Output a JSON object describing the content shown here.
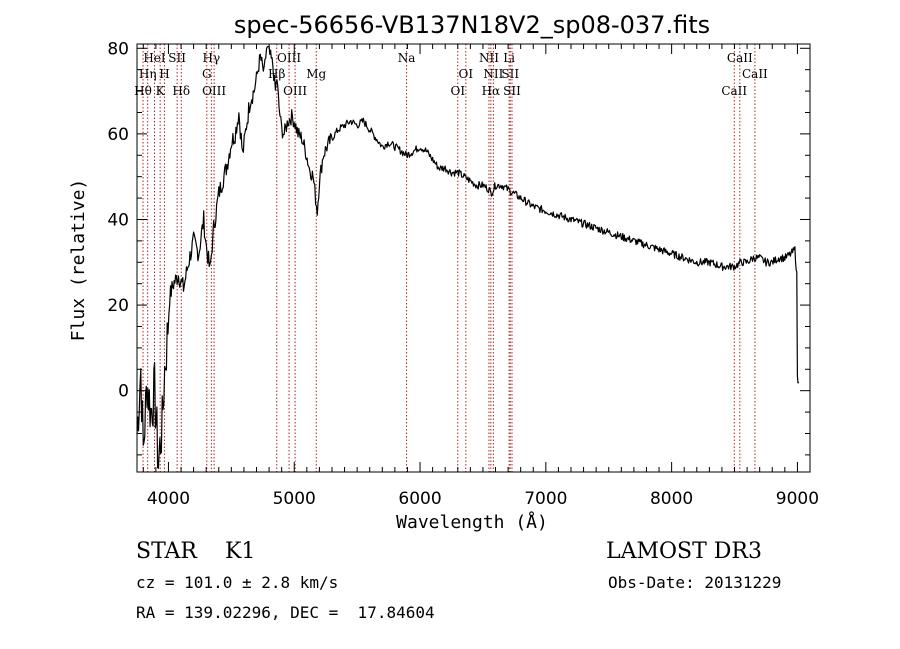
{
  "chart_data": {
    "type": "line",
    "title": "spec-56656-VB137N18V2_sp08-037.fits",
    "xlabel": "Wavelength (Å)",
    "ylabel": "Flux (relative)",
    "xlim": [
      3750,
      9100
    ],
    "ylim": [
      -19,
      81
    ],
    "xticks": [
      4000,
      5000,
      6000,
      7000,
      8000,
      9000
    ],
    "xtick_labels": [
      "4000",
      "5000",
      "6000",
      "7000",
      "8000",
      "9000"
    ],
    "yticks": [
      0,
      20,
      40,
      60,
      80
    ],
    "ytick_labels": [
      "0",
      "20",
      "40",
      "60",
      "80"
    ],
    "series": [
      {
        "name": "flux",
        "x": [
          3750,
          3780,
          3800,
          3830,
          3860,
          3890,
          3920,
          3950,
          3970,
          3990,
          4010,
          4040,
          4080,
          4120,
          4160,
          4200,
          4240,
          4280,
          4300,
          4330,
          4360,
          4400,
          4430,
          4460,
          4500,
          4530,
          4560,
          4590,
          4620,
          4650,
          4680,
          4700,
          4730,
          4760,
          4780,
          4800,
          4830,
          4850,
          4862,
          4880,
          4900,
          4920,
          4950,
          4980,
          5000,
          5030,
          5060,
          5090,
          5120,
          5150,
          5170,
          5183,
          5200,
          5230,
          5260,
          5300,
          5350,
          5400,
          5450,
          5500,
          5550,
          5600,
          5650,
          5700,
          5750,
          5800,
          5850,
          5893,
          5950,
          6000,
          6050,
          6100,
          6150,
          6200,
          6250,
          6300,
          6350,
          6400,
          6450,
          6500,
          6550,
          6563,
          6600,
          6650,
          6700,
          6750,
          6800,
          6900,
          7000,
          7100,
          7200,
          7300,
          7400,
          7500,
          7600,
          7700,
          7800,
          7900,
          8000,
          8100,
          8200,
          8300,
          8400,
          8500,
          8550,
          8600,
          8650,
          8700,
          8750,
          8800,
          8850,
          8900,
          8950,
          8980,
          8995,
          9000,
          9010
        ],
        "y": [
          -10,
          5,
          -14,
          2,
          -5,
          0,
          -17,
          -8,
          5,
          12,
          22,
          25,
          27,
          24,
          30,
          35,
          32,
          40,
          34,
          28,
          38,
          46,
          49,
          52,
          58,
          60,
          65,
          55,
          62,
          68,
          70,
          73,
          78,
          74,
          80,
          79,
          76,
          70,
          73,
          66,
          61,
          60,
          63,
          64,
          63,
          60,
          59,
          56,
          52,
          50,
          45,
          42,
          49,
          55,
          57,
          59,
          61,
          62,
          63,
          62,
          63,
          61,
          59,
          57,
          58,
          57,
          56,
          55,
          56,
          57,
          56,
          54,
          52,
          52,
          51,
          51,
          50,
          49,
          48,
          48,
          47,
          46,
          48,
          48,
          47,
          46,
          45,
          43,
          42,
          41,
          40,
          39,
          38,
          37,
          36,
          35,
          34,
          33,
          32,
          31,
          30,
          30,
          29,
          29,
          30,
          30,
          31,
          31,
          30,
          30,
          31,
          31,
          32,
          33,
          27,
          3,
          2
        ]
      }
    ],
    "spectral_lines": [
      {
        "label": "Hθ",
        "wl": 3798,
        "row": 3
      },
      {
        "label": "Hη",
        "wl": 3835,
        "row": 2
      },
      {
        "label": "HeI",
        "wl": 3889,
        "row": 1
      },
      {
        "label": "K",
        "wl": 3934,
        "row": 3
      },
      {
        "label": "H",
        "wl": 3968,
        "row": 2
      },
      {
        "label": "SII",
        "wl": 4069,
        "row": 1
      },
      {
        "label": "Hδ",
        "wl": 4102,
        "row": 3
      },
      {
        "label": "Hγ",
        "wl": 4341,
        "row": 1
      },
      {
        "label": "G",
        "wl": 4305,
        "row": 2
      },
      {
        "label": "OIII",
        "wl": 4363,
        "row": 3
      },
      {
        "label": "OIII",
        "wl": 4959,
        "row": 1
      },
      {
        "label": "Hβ",
        "wl": 4861,
        "row": 2
      },
      {
        "label": "OIII",
        "wl": 5007,
        "row": 3
      },
      {
        "label": "Mg",
        "wl": 5175,
        "row": 2
      },
      {
        "label": "Na",
        "wl": 5893,
        "row": 1
      },
      {
        "label": "OI",
        "wl": 6364,
        "row": 2
      },
      {
        "label": "OI",
        "wl": 6300,
        "row": 3
      },
      {
        "label": "NII",
        "wl": 6548,
        "row": 1
      },
      {
        "label": "NII",
        "wl": 6583,
        "row": 2
      },
      {
        "label": "Hα",
        "wl": 6563,
        "row": 3
      },
      {
        "label": "Li",
        "wl": 6708,
        "row": 1
      },
      {
        "label": "SII",
        "wl": 6717,
        "row": 2
      },
      {
        "label": "SII",
        "wl": 6731,
        "row": 3
      },
      {
        "label": "CaII",
        "wl": 8542,
        "row": 1
      },
      {
        "label": "CaII",
        "wl": 8662,
        "row": 2
      },
      {
        "label": "CaII",
        "wl": 8498,
        "row": 3
      }
    ]
  },
  "info": {
    "class_line": "STAR    K1",
    "cz_line": "cz = 101.0 ± 2.8 km/s",
    "coords_line": "RA = 139.02296, DEC =  17.84604",
    "survey": "LAMOST DR3",
    "obs_date": "Obs-Date: 20131229"
  },
  "colors": {
    "line_marker": "#b22222",
    "spectrum": "#000000",
    "axes": "#000000"
  }
}
